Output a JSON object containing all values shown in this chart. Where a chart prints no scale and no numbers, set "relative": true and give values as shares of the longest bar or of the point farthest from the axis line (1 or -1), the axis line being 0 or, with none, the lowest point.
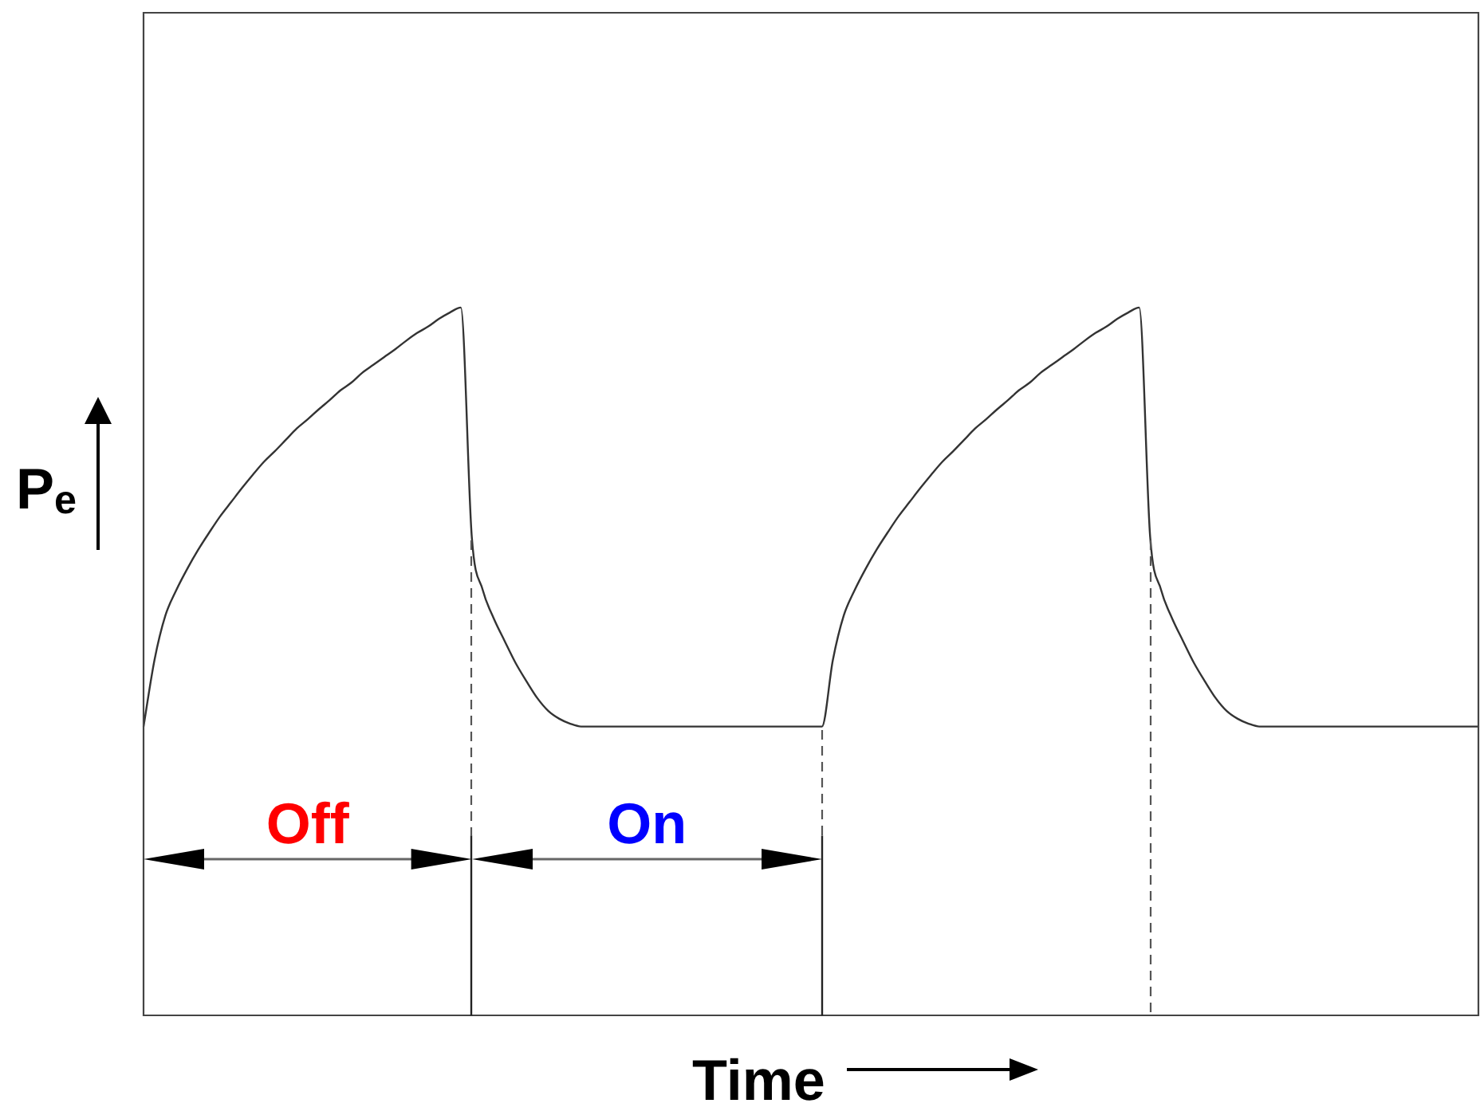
{
  "chart_data": {
    "type": "line",
    "xlabel": "Time",
    "ylabel": "P$_{e}$",
    "relative": true,
    "marker": "none",
    "line_style": "solid",
    "categories": [
      null,
      null,
      null,
      null,
      null,
      null,
      null,
      null,
      null,
      null,
      null,
      null,
      null,
      null,
      null,
      null,
      null,
      null,
      null,
      null,
      null,
      null,
      null,
      null,
      null,
      null,
      null,
      null,
      null,
      null,
      null,
      null,
      null,
      null,
      null,
      null,
      null,
      null,
      null,
      null,
      null,
      null,
      null,
      null,
      null,
      null,
      null,
      null,
      null,
      null,
      null,
      null,
      null,
      null,
      null,
      null,
      null,
      null,
      null,
      null,
      null,
      null,
      null,
      null,
      null,
      null,
      null,
      null,
      null,
      null,
      null,
      null,
      null,
      null,
      null,
      null,
      null,
      null,
      null,
      null,
      null,
      null,
      null,
      null,
      null,
      null,
      null,
      null,
      null,
      null,
      null,
      null,
      null,
      null,
      null,
      null,
      null,
      null,
      null,
      null,
      null,
      null,
      null,
      null,
      null,
      null,
      null,
      null,
      null,
      null,
      null,
      null,
      null,
      null,
      null,
      null,
      null,
      null,
      null,
      null,
      null,
      null,
      null
    ],
    "series": [
      {
        "color": "#333333",
        "values": [
          0.408,
          0.502,
          0.565,
          0.601,
          0.631,
          0.658,
          0.682,
          0.705,
          0.725,
          0.745,
          0.764,
          0.782,
          0.797,
          0.813,
          0.829,
          0.842,
          0.856,
          0.869,
          0.883,
          0.894,
          0.908,
          0.919,
          0.93,
          0.941,
          0.953,
          0.964,
          0.973,
          0.984,
          0.993,
          1,
          0.676,
          0.601,
          0.561,
          0.529,
          0.498,
          0.472,
          0.448,
          0.43,
          0.419,
          0.412,
          0.408,
          0.408,
          0.408,
          0.408,
          0.408,
          0.408,
          0.408,
          0.408,
          0.408,
          0.408,
          0.408,
          0.408,
          0.408,
          0.408,
          0.408,
          0.408,
          0.408,
          0.408,
          0.408,
          0.408,
          0.408,
          0.408,
          0.408,
          0.502,
          0.565,
          0.601,
          0.631,
          0.658,
          0.682,
          0.705,
          0.725,
          0.745,
          0.764,
          0.782,
          0.797,
          0.813,
          0.829,
          0.842,
          0.856,
          0.869,
          0.883,
          0.894,
          0.908,
          0.919,
          0.93,
          0.941,
          0.953,
          0.964,
          0.973,
          0.984,
          0.993,
          1,
          0.676,
          0.601,
          0.561,
          0.529,
          0.498,
          0.472,
          0.448,
          0.43,
          0.419,
          0.412,
          0.408,
          0.408,
          0.408,
          0.408,
          0.408,
          0.408,
          0.408,
          0.408,
          0.408,
          0.408,
          0.408,
          0.408,
          0.408,
          0.408,
          0.408,
          0.408,
          0.408,
          0.408,
          0.408,
          0.408,
          0.408
        ]
      }
    ],
    "annotations": [
      "Off",
      "On"
    ]
  }
}
